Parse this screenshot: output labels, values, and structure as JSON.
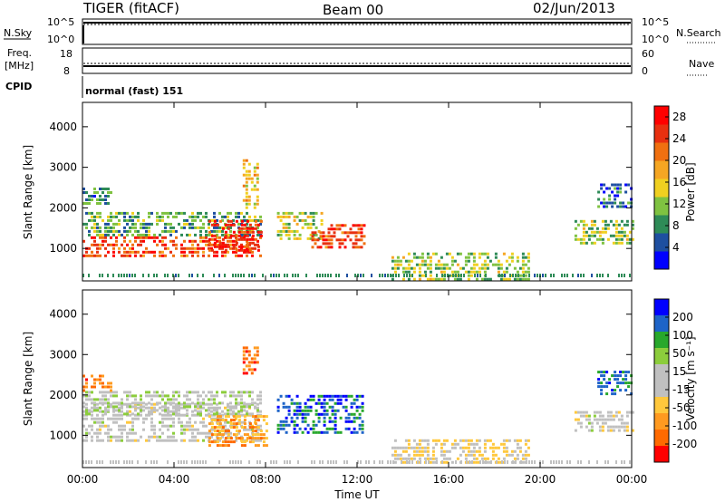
{
  "header": {
    "station": "TIGER (fitACF)",
    "beam": "Beam 00",
    "date": "02/Jun/2013"
  },
  "strip_panels": {
    "nsky": {
      "label": "N.Sky",
      "ticks": [
        "10^5",
        "10^0"
      ],
      "right_label": "N.Search",
      "right_ticks": [
        "10^5",
        "10^0"
      ]
    },
    "freq": {
      "label_line1": "Freq.",
      "label_line2": "[MHz]",
      "ticks": [
        "18",
        "8"
      ],
      "right_label": "Nave",
      "right_ticks": [
        "60",
        "0"
      ]
    },
    "cpid": {
      "label": "CPID",
      "value": "normal (fast) 151"
    }
  },
  "colors": {
    "power_scale": [
      "#0000ff",
      "#1e4fa0",
      "#2e8b57",
      "#7fc241",
      "#f0d020",
      "#f5a623",
      "#f07010",
      "#e83010",
      "#ff0000"
    ],
    "velocity_scale": [
      "#ff0000",
      "#ff6a00",
      "#ff9a20",
      "#ffc83c",
      "#c0c0c0",
      "#c0c0c0",
      "#8ccd3c",
      "#28a82c",
      "#1e64c8",
      "#0000ff"
    ]
  },
  "chart_data": [
    {
      "type": "heatmap",
      "name": "power",
      "ylabel": "Slant Range [km]",
      "yticks": [
        1000,
        2000,
        3000,
        4000
      ],
      "ylim": [
        200,
        4600
      ],
      "xticks": [
        "00:00",
        "04:00",
        "08:00",
        "12:00",
        "16:00",
        "20:00",
        "00:00"
      ],
      "xlim_hours": [
        0,
        24
      ],
      "colorbar": {
        "label": "Power [dB]",
        "ticks": [
          4,
          8,
          12,
          16,
          20,
          24,
          28
        ],
        "range": [
          0,
          30
        ]
      },
      "echo_regions": [
        {
          "t0": 0,
          "t1": 7.8,
          "r0": 800,
          "r1": 1300,
          "value": 24
        },
        {
          "t0": 0,
          "t1": 7.8,
          "r0": 1300,
          "r1": 1900,
          "value": 10
        },
        {
          "t0": 5.5,
          "t1": 7.8,
          "r0": 900,
          "r1": 1700,
          "value": 26
        },
        {
          "t0": 8.5,
          "t1": 10.5,
          "r0": 1200,
          "r1": 1900,
          "value": 14
        },
        {
          "t0": 10,
          "t1": 12.3,
          "r0": 1000,
          "r1": 1600,
          "value": 24
        },
        {
          "t0": 7,
          "t1": 7.6,
          "r0": 2000,
          "r1": 3200,
          "value": 16
        },
        {
          "t0": 0,
          "t1": 1.2,
          "r0": 2100,
          "r1": 2500,
          "value": 8
        },
        {
          "t0": 13.5,
          "t1": 19.5,
          "r0": 250,
          "r1": 900,
          "value": 12
        },
        {
          "t0": 21.5,
          "t1": 24,
          "r0": 1100,
          "r1": 1700,
          "value": 12
        },
        {
          "t0": 22.5,
          "t1": 24,
          "r0": 2000,
          "r1": 2600,
          "value": 6
        }
      ]
    },
    {
      "type": "heatmap",
      "name": "velocity",
      "ylabel": "Slant Range [km]",
      "yticks": [
        1000,
        2000,
        3000,
        4000
      ],
      "ylim": [
        200,
        4600
      ],
      "xticks": [
        "00:00",
        "04:00",
        "08:00",
        "12:00",
        "16:00",
        "20:00",
        "00:00"
      ],
      "xlabel": "Time UT",
      "xlim_hours": [
        0,
        24
      ],
      "colorbar": {
        "label": "Velocity [m s⁻¹]",
        "ticks": [
          200,
          100,
          50,
          15,
          -15,
          -50,
          -100,
          -200
        ],
        "range": [
          -250,
          250
        ]
      },
      "echo_regions": [
        {
          "t0": 0,
          "t1": 7.8,
          "r0": 900,
          "r1": 1800,
          "value": 0
        },
        {
          "t0": 0,
          "t1": 7.8,
          "r0": 1500,
          "r1": 2100,
          "value": 30
        },
        {
          "t0": 5.5,
          "t1": 8,
          "r0": 700,
          "r1": 1500,
          "value": -120
        },
        {
          "t0": 8.5,
          "t1": 12.2,
          "r0": 1100,
          "r1": 2000,
          "value": 180
        },
        {
          "t0": 7,
          "t1": 7.6,
          "r0": 2500,
          "r1": 3200,
          "value": -180
        },
        {
          "t0": 0,
          "t1": 1.2,
          "r0": 2100,
          "r1": 2500,
          "value": -150
        },
        {
          "t0": 13.5,
          "t1": 19.5,
          "r0": 300,
          "r1": 900,
          "value": -40
        },
        {
          "t0": 21.5,
          "t1": 24,
          "r0": 1100,
          "r1": 1600,
          "value": 0
        },
        {
          "t0": 22.5,
          "t1": 24,
          "r0": 2000,
          "r1": 2600,
          "value": 160
        }
      ]
    }
  ]
}
